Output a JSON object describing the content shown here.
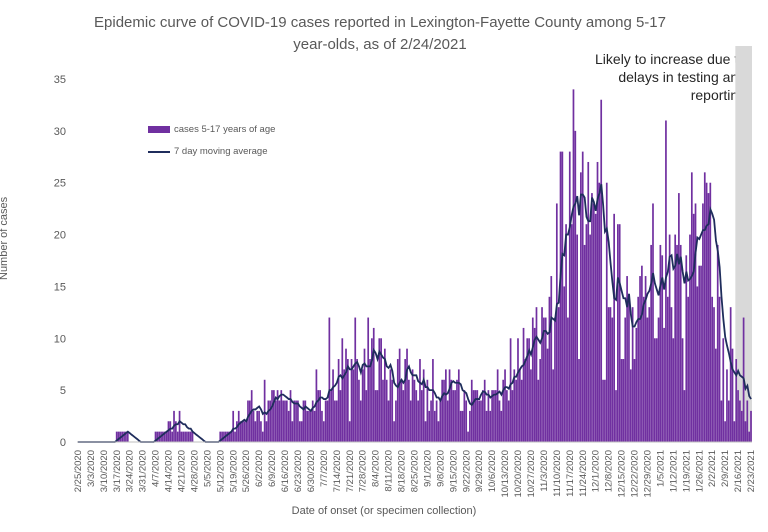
{
  "title_line1": "Epidemic curve of COVID-19 cases reported in Lexington-Fayette County among 5-17",
  "title_line2": "year-olds, as of 2/24/2021",
  "note": "Likely to increase due to delays in testing and reporting",
  "chart_data": {
    "type": "bar",
    "title": "Epidemic curve of COVID-19 cases reported in Lexington-Fayette County among 5-17 year-olds, as of 2/24/2021",
    "xlabel": "Date of onset (or specimen collection)",
    "ylabel": "Number of cases",
    "ylim": [
      0,
      35
    ],
    "yticks": [
      0,
      5,
      10,
      15,
      20,
      25,
      30,
      35
    ],
    "x_tick_labels": [
      "2/25/2020",
      "3/3/2020",
      "3/10/2020",
      "3/17/2020",
      "3/24/2020",
      "3/31/2020",
      "4/7/2020",
      "4/14/2020",
      "4/21/2020",
      "4/28/2020",
      "5/5/2020",
      "5/12/2020",
      "5/19/2020",
      "5/26/2020",
      "6/2/2020",
      "6/9/2020",
      "6/16/2020",
      "6/23/2020",
      "6/30/2020",
      "7/7/2020",
      "7/14/2020",
      "7/21/2020",
      "7/28/2020",
      "8/4/2020",
      "8/11/2020",
      "8/18/2020",
      "8/25/2020",
      "9/1/2020",
      "9/8/2020",
      "9/15/2020",
      "9/22/2020",
      "9/29/2020",
      "10/6/2020",
      "10/13/2020",
      "10/20/2020",
      "10/27/2020",
      "11/3/2020",
      "11/10/2020",
      "11/17/2020",
      "11/24/2020",
      "12/1/2020",
      "12/8/2020",
      "12/15/2020",
      "12/22/2020",
      "12/29/2020",
      "1/5/2021",
      "1/12/2021",
      "1/19/2021",
      "1/26/2021",
      "2/2/2021",
      "2/9/2021",
      "2/16/2021",
      "2/23/2021"
    ],
    "grid": false,
    "legend_position": "upper-left",
    "shaded_region": {
      "from_day": 356,
      "to_day": 365
    },
    "series": [
      {
        "name": "cases 5-17 years of age",
        "kind": "bar",
        "color": "#7030a0",
        "weekly_targets": [
          0,
          0,
          0,
          1,
          0,
          0,
          1,
          2,
          1,
          0,
          0,
          1,
          2,
          3,
          3,
          4,
          3,
          3,
          4,
          6,
          7,
          7,
          8,
          7,
          7,
          6,
          6,
          5,
          5,
          4,
          4,
          4,
          5,
          6,
          8,
          10,
          12,
          20,
          25,
          22,
          20,
          17,
          12,
          12,
          14,
          18,
          17,
          18,
          18,
          12,
          7,
          4,
          3
        ],
        "weekly_peaks": [
          0,
          0,
          0,
          1,
          0,
          0,
          1,
          2,
          1,
          0,
          0,
          1,
          3,
          5,
          6,
          5,
          5,
          4,
          7,
          12,
          10,
          12,
          12,
          10,
          10,
          9,
          8,
          8,
          7,
          7,
          6,
          6,
          7,
          10,
          11,
          13,
          14,
          28,
          30,
          27,
          33,
          22,
          16,
          16,
          23,
          31,
          24,
          26,
          26,
          19,
          13,
          12,
          3
        ],
        "values": []
      },
      {
        "name": "7 day moving average",
        "kind": "line",
        "color": "#1f2d5c",
        "values": []
      }
    ]
  }
}
